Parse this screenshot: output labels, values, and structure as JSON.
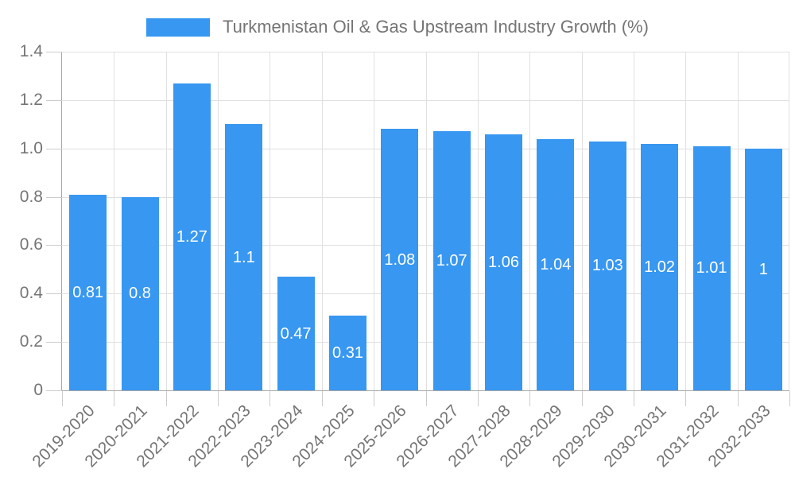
{
  "chart_data": {
    "type": "bar",
    "title": "Turkmenistan Oil & Gas Upstream Industry Growth (%)",
    "xlabel": "",
    "ylabel": "",
    "categories": [
      "2019-2020",
      "2020-2021",
      "2021-2022",
      "2022-2023",
      "2023-2024",
      "2024-2025",
      "2025-2026",
      "2026-2027",
      "2027-2028",
      "2028-2029",
      "2029-2030",
      "2030-2031",
      "2031-2032",
      "2032-2033"
    ],
    "values": [
      0.81,
      0.8,
      1.27,
      1.1,
      0.47,
      0.31,
      1.08,
      1.07,
      1.06,
      1.04,
      1.03,
      1.02,
      1.01,
      1
    ],
    "value_labels": [
      "0.81",
      "0.8",
      "1.27",
      "1.1",
      "0.47",
      "0.31",
      "1.08",
      "1.07",
      "1.06",
      "1.04",
      "1.03",
      "1.02",
      "1.01",
      "1"
    ],
    "ylim": [
      0,
      1.4
    ],
    "ytick_labels": [
      "0",
      "0.2",
      "0.4",
      "0.6",
      "0.8",
      "1.0",
      "1.2",
      "1.4"
    ],
    "grid": true,
    "legend_position": "top",
    "value_label_position": "center-of-bar",
    "x_label_rotation_deg": 45,
    "colors": {
      "bar": "#3797f1",
      "value_label": "#ffffff",
      "text": "#757575",
      "axis_line": "#a8a8a8",
      "grid_line": "#e0e0e0",
      "tick_mark": "#cccccc",
      "background": "#ffffff"
    }
  }
}
